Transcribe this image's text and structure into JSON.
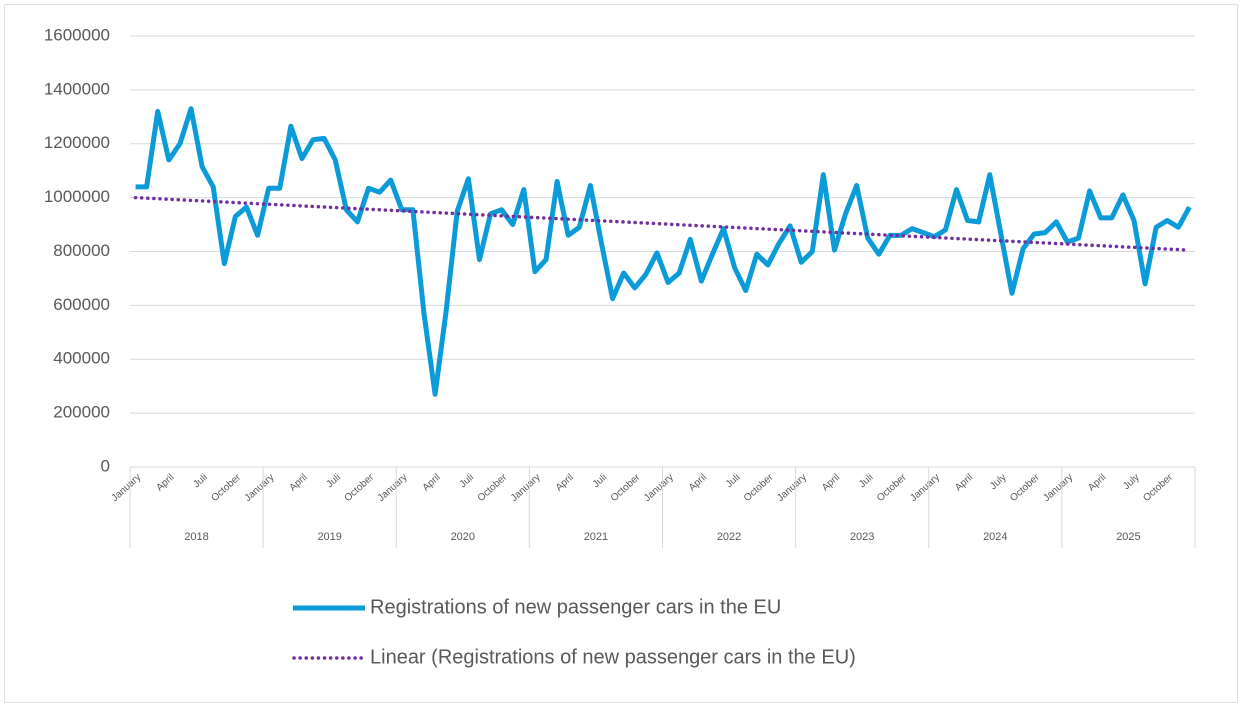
{
  "chart_data": {
    "type": "line",
    "categories": [
      "January",
      null,
      null,
      "April",
      null,
      null,
      "Juli",
      null,
      null,
      "October",
      null,
      null,
      "January",
      null,
      null,
      "April",
      null,
      null,
      "Juli",
      null,
      null,
      "October",
      null,
      null,
      "January",
      null,
      null,
      "April",
      null,
      null,
      "Juli",
      null,
      null,
      "October",
      null,
      null,
      "January",
      null,
      null,
      "April",
      null,
      null,
      "Juli",
      null,
      null,
      "October",
      null,
      null,
      "January",
      null,
      null,
      "April",
      null,
      null,
      "Juli",
      null,
      null,
      "October",
      null,
      null,
      "January",
      null,
      null,
      "April",
      null,
      null,
      "Juli",
      null,
      null,
      "October",
      null,
      null,
      "January",
      null,
      null,
      "April",
      null,
      null,
      "July",
      null,
      null,
      "October",
      null,
      null,
      "January",
      null,
      null,
      "April",
      null,
      null,
      "July",
      null,
      null,
      "October",
      null,
      null
    ],
    "years": [
      "2018",
      "2019",
      "2020",
      "2021",
      "2022",
      "2023",
      "2024",
      "2025"
    ],
    "series": [
      {
        "name": "Registrations of new passenger cars in the EU",
        "color": "#0c9bd9",
        "values": [
          1040000,
          1040000,
          1320000,
          1140000,
          1200000,
          1330000,
          1115000,
          1040000,
          755000,
          930000,
          965000,
          860000,
          1035000,
          1035000,
          1265000,
          1145000,
          1215000,
          1220000,
          1140000,
          955000,
          910000,
          1035000,
          1020000,
          1065000,
          955000,
          955000,
          570000,
          270000,
          580000,
          950000,
          1070000,
          770000,
          940000,
          955000,
          900000,
          1030000,
          725000,
          770000,
          1060000,
          860000,
          890000,
          1045000,
          830000,
          625000,
          720000,
          665000,
          715000,
          795000,
          685000,
          720000,
          845000,
          690000,
          790000,
          885000,
          740000,
          655000,
          790000,
          750000,
          830000,
          895000,
          760000,
          800000,
          1085000,
          805000,
          940000,
          1045000,
          850000,
          790000,
          860000,
          860000,
          885000,
          870000,
          855000,
          880000,
          1030000,
          915000,
          910000,
          1085000,
          865000,
          645000,
          810000,
          865000,
          870000,
          910000,
          835000,
          850000,
          1025000,
          925000,
          925000,
          1010000,
          915000,
          680000,
          890000,
          915000,
          890000,
          965000
        ]
      }
    ],
    "trendline": {
      "name": "Linear (Registrations of new passenger cars in the EU)",
      "color": "#7030a0",
      "values": [
        1000000,
        805000
      ]
    },
    "ylim": [
      0,
      1600000
    ],
    "yticks": [
      0,
      200000,
      400000,
      600000,
      800000,
      1000000,
      1200000,
      1400000,
      1600000
    ],
    "grid": true
  }
}
